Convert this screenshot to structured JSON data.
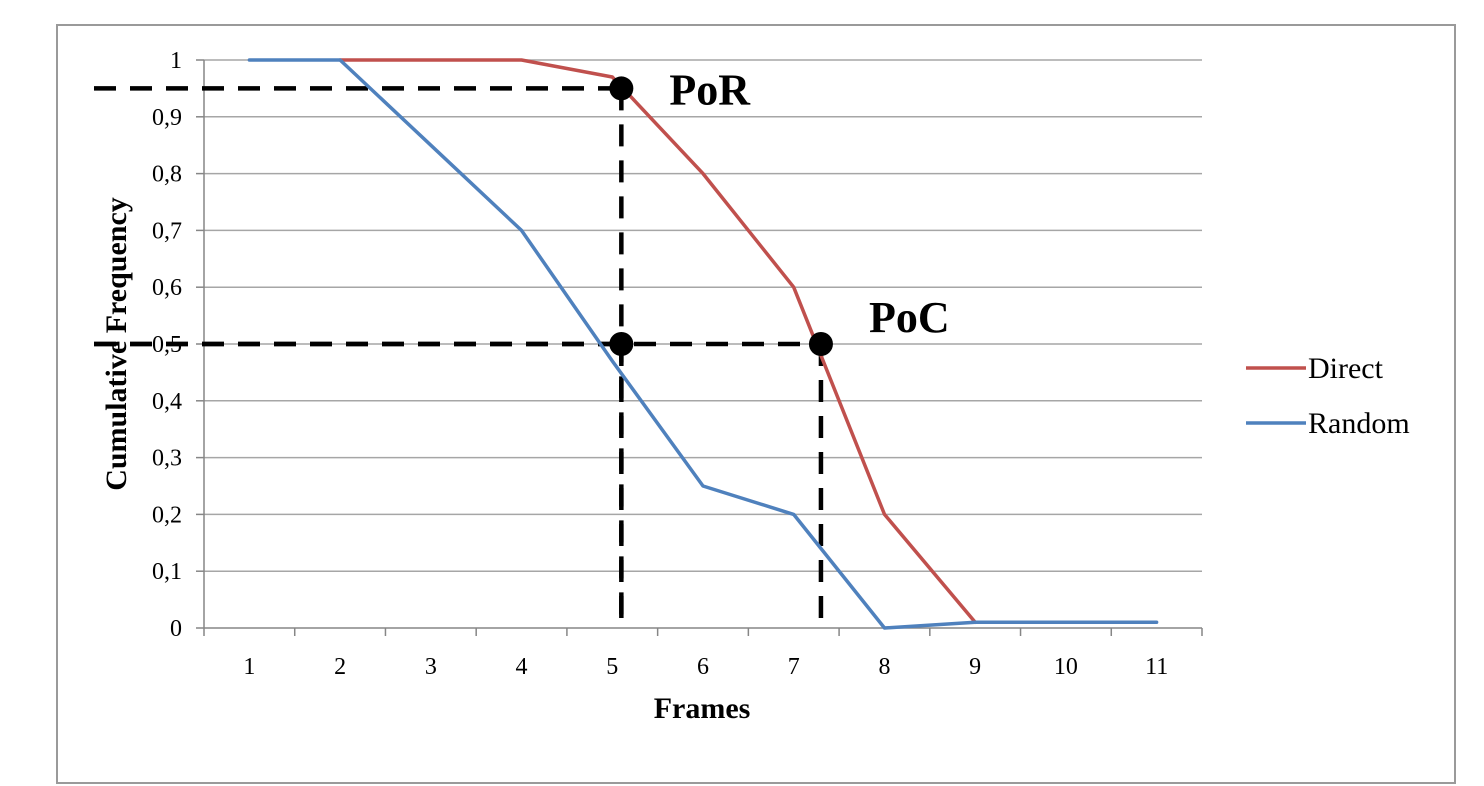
{
  "chart_data": {
    "type": "line",
    "title": "",
    "xlabel": "Frames",
    "ylabel": "Cumulative Frequency",
    "categories": [
      "1",
      "2",
      "3",
      "4",
      "5",
      "6",
      "7",
      "8",
      "9",
      "10",
      "11"
    ],
    "x_values": [
      1,
      2,
      3,
      4,
      5,
      6,
      7,
      8,
      9,
      10,
      11
    ],
    "ylim": [
      0,
      1
    ],
    "y_ticks": [
      "0",
      "0,1",
      "0,2",
      "0,3",
      "0,4",
      "0,5",
      "0,6",
      "0,7",
      "0,8",
      "0,9",
      "1"
    ],
    "y_tick_values": [
      0,
      0.1,
      0.2,
      0.3,
      0.4,
      0.5,
      0.6,
      0.7,
      0.8,
      0.9,
      1
    ],
    "grid": true,
    "legend_position": "right",
    "series": [
      {
        "name": "Direct",
        "color": "#c0504d",
        "x": [
          2,
          3,
          4,
          5,
          6,
          7,
          8,
          9
        ],
        "values": [
          1,
          1,
          1,
          0.97,
          0.8,
          0.6,
          0.2,
          0.01
        ]
      },
      {
        "name": "Random",
        "color": "#4f81bd",
        "x": [
          1,
          2,
          3,
          4,
          5,
          6,
          7,
          8,
          9,
          10,
          11
        ],
        "values": [
          1,
          1,
          0.85,
          0.7,
          0.47,
          0.25,
          0.2,
          0.0,
          0.01,
          0.01,
          0.01
        ]
      }
    ],
    "annotations": [
      {
        "label": "PoR",
        "x": 5.1,
        "y": 0.95
      },
      {
        "label": "PoC",
        "x": 7.3,
        "y": 0.5
      },
      {
        "label": "",
        "x": 5.1,
        "y": 0.5
      }
    ]
  }
}
